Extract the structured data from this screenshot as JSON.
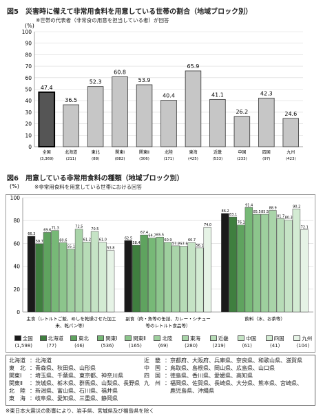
{
  "fig5": {
    "title": "図5　災害時に備えて非常用食料を用意している世帯の割合（地域ブロック別）",
    "note": "※世帯の代表者（非常食の用意を担当している者）が回答",
    "unit": "(%)"
  },
  "fig6": {
    "title": "図6　用意している非常用食料の種類（地域ブロック別）",
    "note": "※非常用食料を用意している世帯における回答",
    "unit": "(%)"
  },
  "chart_data": [
    {
      "type": "bar",
      "title": "図5　災害時に備えて非常用食料を用意している世帯の割合（地域ブロック別）",
      "ylabel": "(%)",
      "ylim": [
        0,
        100
      ],
      "yticks": [
        0,
        10,
        20,
        30,
        40,
        50,
        60,
        70,
        80,
        90,
        100
      ],
      "categories": [
        "全国",
        "北海道",
        "東北",
        "関東Ⅰ",
        "関東Ⅱ",
        "北陸",
        "東海",
        "近畿",
        "中国",
        "四国",
        "九州"
      ],
      "n": [
        "(3,369)",
        "(211)",
        "(88)",
        "(882)",
        "(306)",
        "(171)",
        "(425)",
        "(533)",
        "(233)",
        "(97)",
        "(423)"
      ],
      "values": [
        47.4,
        36.5,
        52.3,
        60.8,
        53.9,
        40.4,
        65.9,
        41.1,
        26.2,
        42.3,
        24.6
      ],
      "colors": {
        "national": "#555555",
        "region": "#c6c6c6"
      }
    },
    {
      "type": "bar",
      "title": "図6　用意している非常用食料の種類（地域ブロック別）",
      "ylabel": "(%)",
      "ylim": [
        0,
        100
      ],
      "yticks": [
        0,
        20,
        40,
        60,
        80,
        100
      ],
      "categories": [
        "主食（レトルトご飯、めしを乾燥させた加工米、乾パン等）",
        "副食（肉・魚等の缶詰、カレー・シチュー等のレトルト食品等）",
        "飲料（水、お茶等）"
      ],
      "series": [
        {
          "name": "全国",
          "n": "(1,598)",
          "color": "#1a1a1a",
          "values": [
            66.3,
            62.5,
            86.2
          ]
        },
        {
          "name": "北海道",
          "n": "(77)",
          "color": "#3f7f3f",
          "values": [
            59.7,
            58.4,
            83.1
          ]
        },
        {
          "name": "東北",
          "n": "(46)",
          "color": "#5fa35f",
          "values": [
            69.6,
            67.4,
            76.1
          ]
        },
        {
          "name": "関東Ⅰ",
          "n": "(536)",
          "color": "#77b977",
          "values": [
            71.3,
            64.7,
            91.4
          ]
        },
        {
          "name": "関東Ⅱ",
          "n": "(165)",
          "color": "#8cc58c",
          "values": [
            60.6,
            65.5,
            85.5
          ]
        },
        {
          "name": "北陸",
          "n": "(69)",
          "color": "#9ecf9e",
          "values": [
            55.1,
            60.9,
            85.5
          ]
        },
        {
          "name": "東海",
          "n": "(280)",
          "color": "#a9d4a9",
          "values": [
            72.5,
            57.9,
            88.9
          ]
        },
        {
          "name": "近畿",
          "n": "(219)",
          "color": "#b7dcb7",
          "values": [
            61.2,
            57.5,
            81.7
          ]
        },
        {
          "name": "中国",
          "n": "(61)",
          "color": "#c5e3c5",
          "values": [
            70.5,
            60.7,
            80.3
          ]
        },
        {
          "name": "四国",
          "n": "(41)",
          "color": "#d3ebd3",
          "values": [
            61.0,
            56.1,
            90.2
          ]
        },
        {
          "name": "九州",
          "n": "(104)",
          "color": "#e6f3e6",
          "values": [
            53.8,
            74.0,
            72.1
          ]
        }
      ],
      "value_labels": [
        [
          "66.3",
          "59.7",
          "69.6",
          "71.3",
          "60.6",
          "55.1",
          "72.5",
          "61.2",
          "70.5",
          "61.0",
          "53.8"
        ],
        [
          "62.5",
          "58.4",
          "67.4",
          "64.7",
          "65.5",
          "60.9",
          "57.9",
          "57.5",
          "60.7",
          "56.1",
          "74.0"
        ],
        [
          "86.2",
          "83.1",
          "76.1",
          "91.4",
          "85.5",
          "85.5",
          "88.9",
          "81.7",
          "80.3",
          "90.2",
          "72.1"
        ]
      ]
    }
  ],
  "regions": {
    "left": [
      {
        "k": "北海道",
        "v": "：北海道"
      },
      {
        "k": "東　北",
        "v": "：青森県、秋田県、山形県"
      },
      {
        "k": "関東Ⅰ",
        "v": "：埼玉県、千葉県、東京都、神奈川県"
      },
      {
        "k": "関東Ⅱ",
        "v": "：茨城県、栃木県、群馬県、山梨県、長野県"
      },
      {
        "k": "北　陸",
        "v": "：新潟県、富山県、石川県、福井県"
      },
      {
        "k": "東　海",
        "v": "：岐阜県、愛知県、三重県、静岡県"
      }
    ],
    "right": [
      {
        "k": "近　畿",
        "v": "：京都府、大阪府、兵庫県、奈良県、和歌山県、滋賀県"
      },
      {
        "k": "中　国",
        "v": "：鳥取県、島根県、岡山県、広島県、山口県"
      },
      {
        "k": "四　国",
        "v": "：徳島県、香川県、愛媛県、高知県"
      },
      {
        "k": "九　州",
        "v": "：福岡県、佐賀県、長崎県、大分県、熊本県、宮崎県、"
      },
      {
        "k": "",
        "v": "　鹿児島県、沖縄県"
      }
    ]
  },
  "footnote": "※東日本大震災の影響により、岩手県、宮城県及び福島県を除く"
}
